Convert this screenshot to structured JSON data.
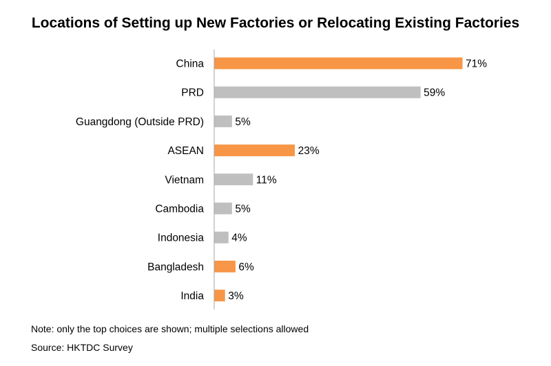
{
  "chart_data": {
    "type": "bar",
    "orientation": "horizontal",
    "title": "Locations of Setting up New Factories or Relocating Existing Factories",
    "categories": [
      "China",
      "PRD",
      "Guangdong (Outside PRD)",
      "ASEAN",
      "Vietnam",
      "Cambodia",
      "Indonesia",
      "Bangladesh",
      "India"
    ],
    "values": [
      71,
      59,
      5,
      23,
      11,
      5,
      4,
      6,
      3
    ],
    "value_labels": [
      "71%",
      "59%",
      "5%",
      "23%",
      "11%",
      "5%",
      "4%",
      "6%",
      "3%"
    ],
    "highlighted": [
      true,
      false,
      false,
      true,
      false,
      false,
      false,
      true,
      true
    ],
    "colors": {
      "highlight": "#F79646",
      "default": "#BFBFBF",
      "axis": "#A6A6A6"
    },
    "xlim": [
      0,
      71
    ],
    "grid": false,
    "legend": "none"
  },
  "notes": {
    "note": "Note: only the top choices are shown; multiple selections allowed",
    "source": "Source: HKTDC Survey"
  }
}
